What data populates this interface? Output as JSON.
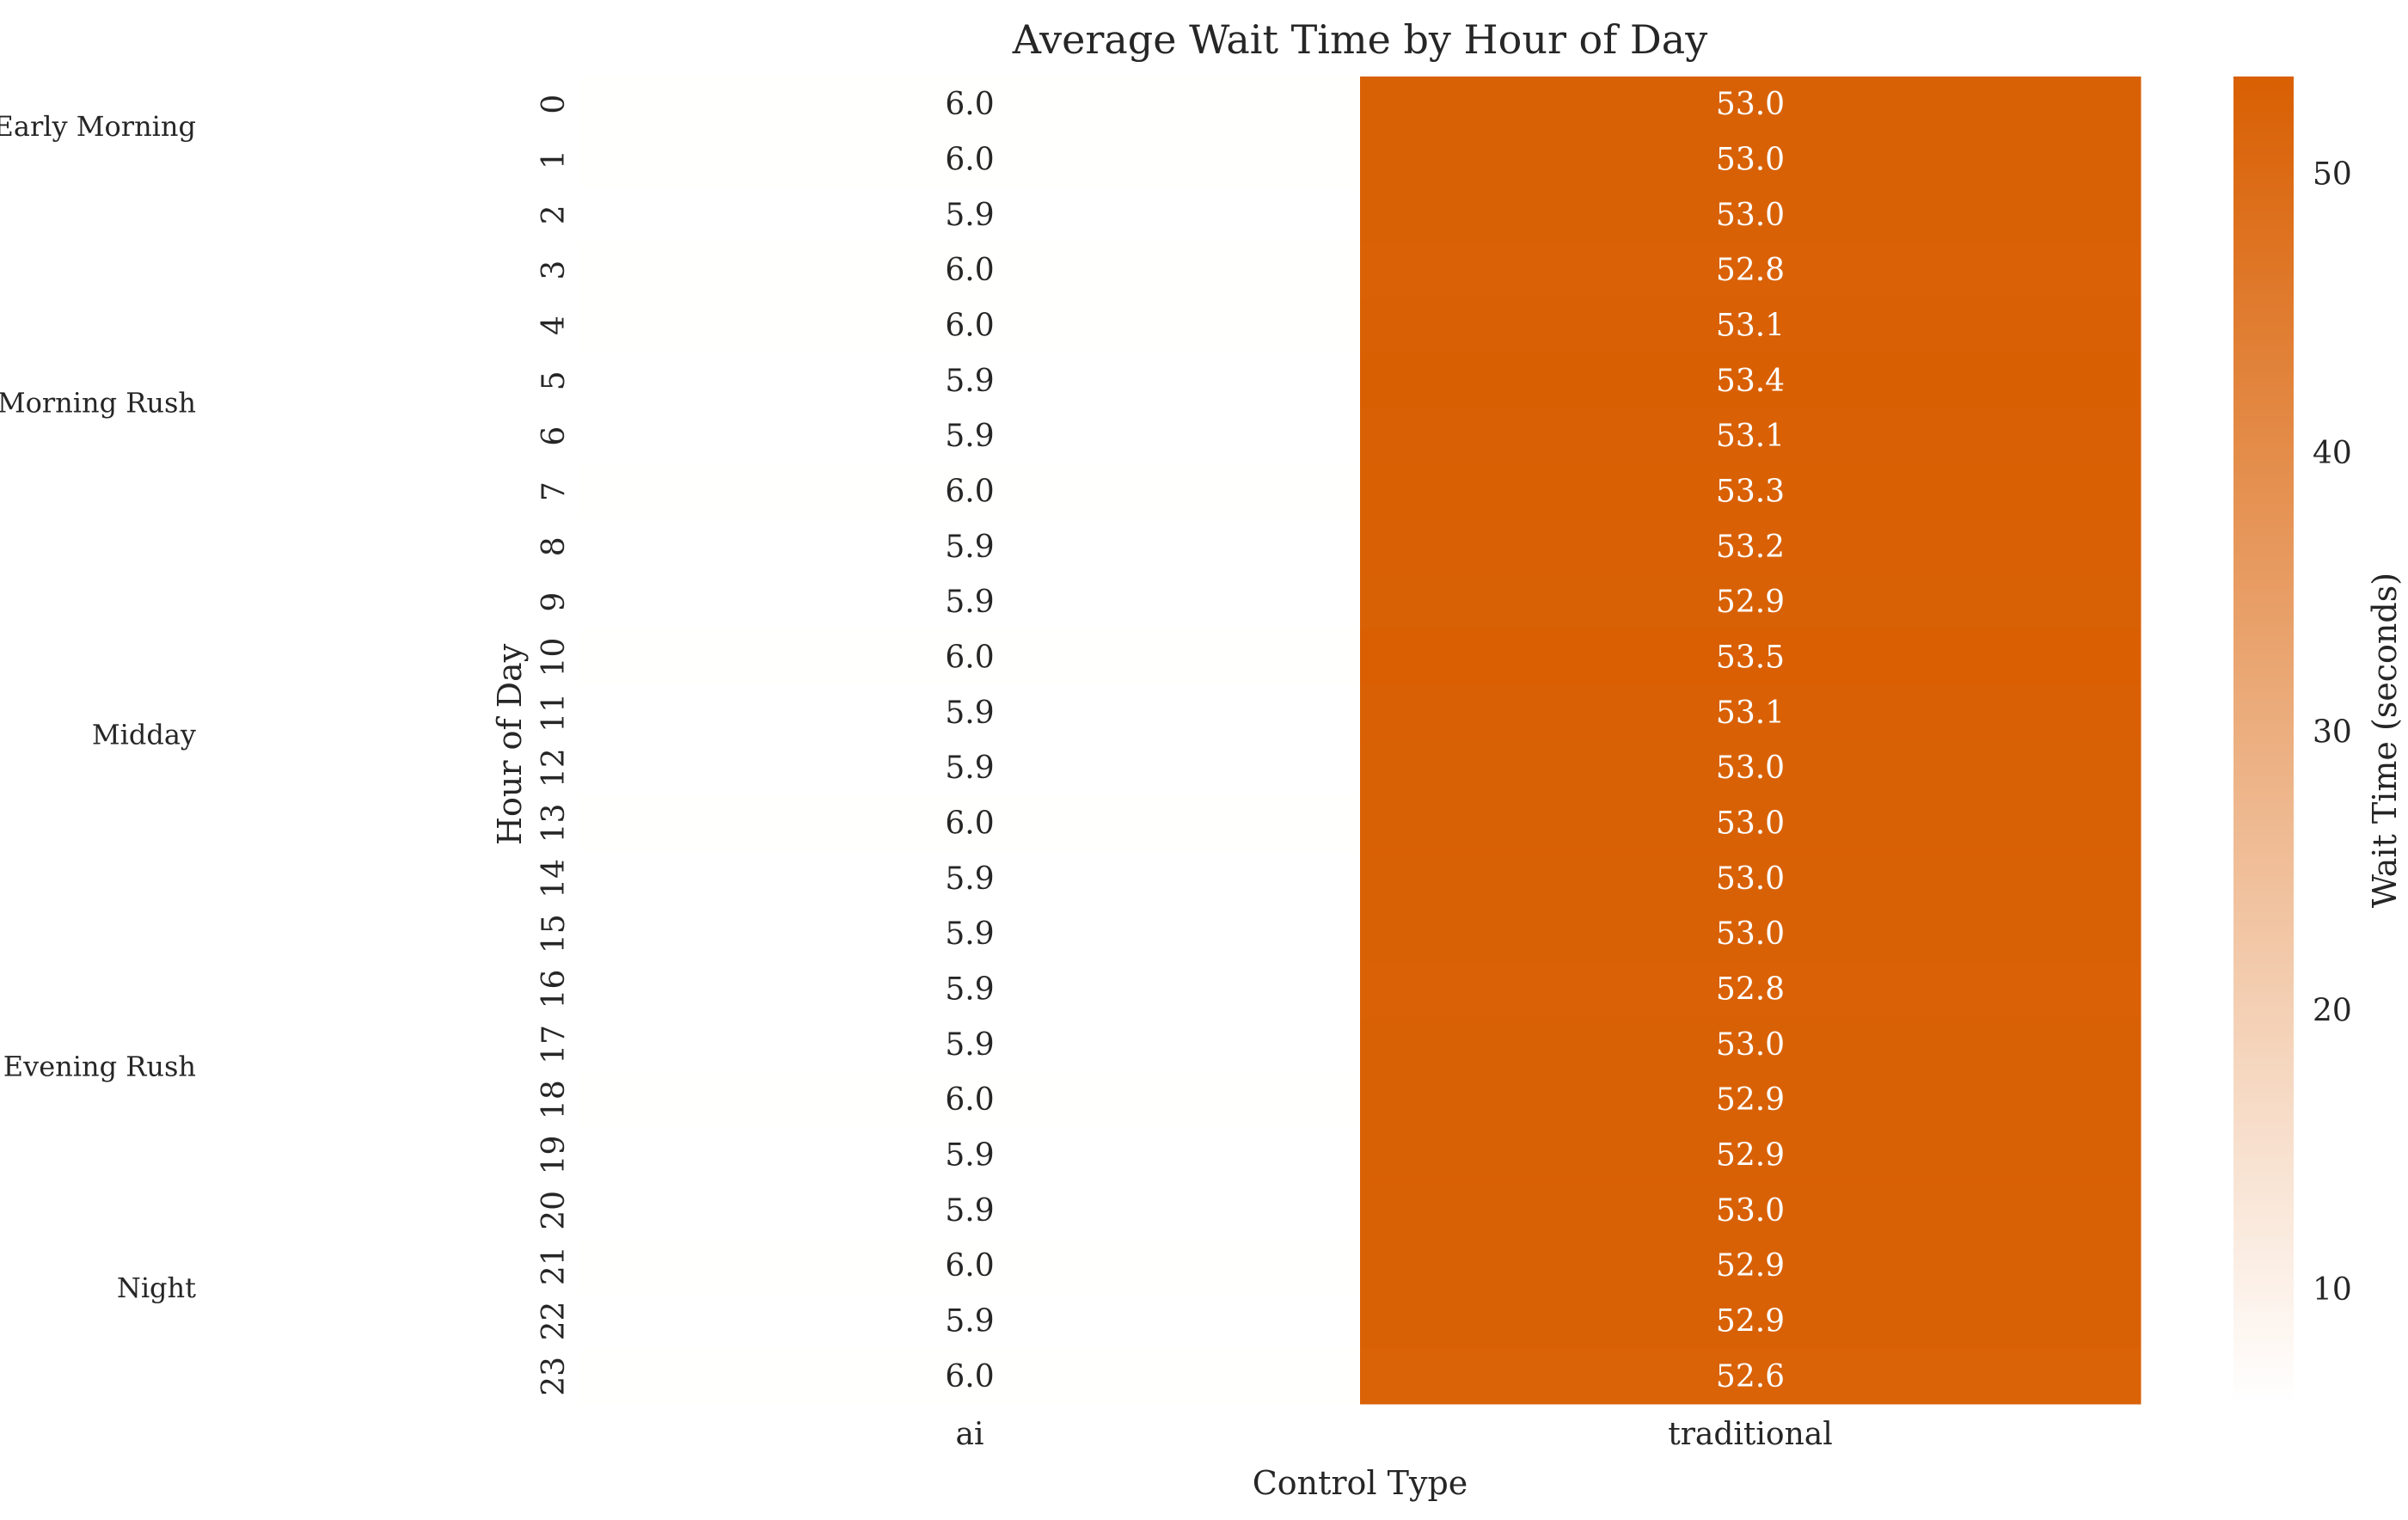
{
  "chart_data": {
    "type": "heatmap",
    "title": "Average Wait Time by Hour of Day",
    "xlabel": "Control Type",
    "ylabel": "Hour of Day",
    "columns": [
      "ai",
      "traditional"
    ],
    "rows": [
      "0",
      "1",
      "2",
      "3",
      "4",
      "5",
      "6",
      "7",
      "8",
      "9",
      "10",
      "11",
      "12",
      "13",
      "14",
      "15",
      "16",
      "17",
      "18",
      "19",
      "20",
      "21",
      "22",
      "23"
    ],
    "values": [
      [
        6.0,
        53.0
      ],
      [
        6.0,
        53.0
      ],
      [
        5.9,
        53.0
      ],
      [
        6.0,
        52.8
      ],
      [
        6.0,
        53.1
      ],
      [
        5.9,
        53.4
      ],
      [
        5.9,
        53.1
      ],
      [
        6.0,
        53.3
      ],
      [
        5.9,
        53.2
      ],
      [
        5.9,
        52.9
      ],
      [
        6.0,
        53.5
      ],
      [
        5.9,
        53.1
      ],
      [
        5.9,
        53.0
      ],
      [
        6.0,
        53.0
      ],
      [
        5.9,
        53.0
      ],
      [
        5.9,
        53.0
      ],
      [
        5.9,
        52.8
      ],
      [
        5.9,
        53.0
      ],
      [
        6.0,
        52.9
      ],
      [
        5.9,
        52.9
      ],
      [
        5.9,
        53.0
      ],
      [
        6.0,
        52.9
      ],
      [
        5.9,
        52.9
      ],
      [
        6.0,
        52.6
      ]
    ],
    "periods": [
      {
        "label": "Early Morning",
        "hour": 0.4
      },
      {
        "label": "Morning Rush",
        "hour": 5.4
      },
      {
        "label": "Midday",
        "hour": 11.4
      },
      {
        "label": "Evening Rush",
        "hour": 17.4
      },
      {
        "label": "Night",
        "hour": 21.4
      }
    ],
    "colorbar": {
      "label": "Wait Time (seconds)",
      "ticks": [
        10,
        20,
        30,
        40,
        50
      ],
      "vmin": 5.9,
      "vmax": 53.5,
      "color_low": "#ffffff",
      "color_high": "#d95f02"
    },
    "annotation_color_dark": "#262626",
    "annotation_color_light": "#ffffff"
  }
}
